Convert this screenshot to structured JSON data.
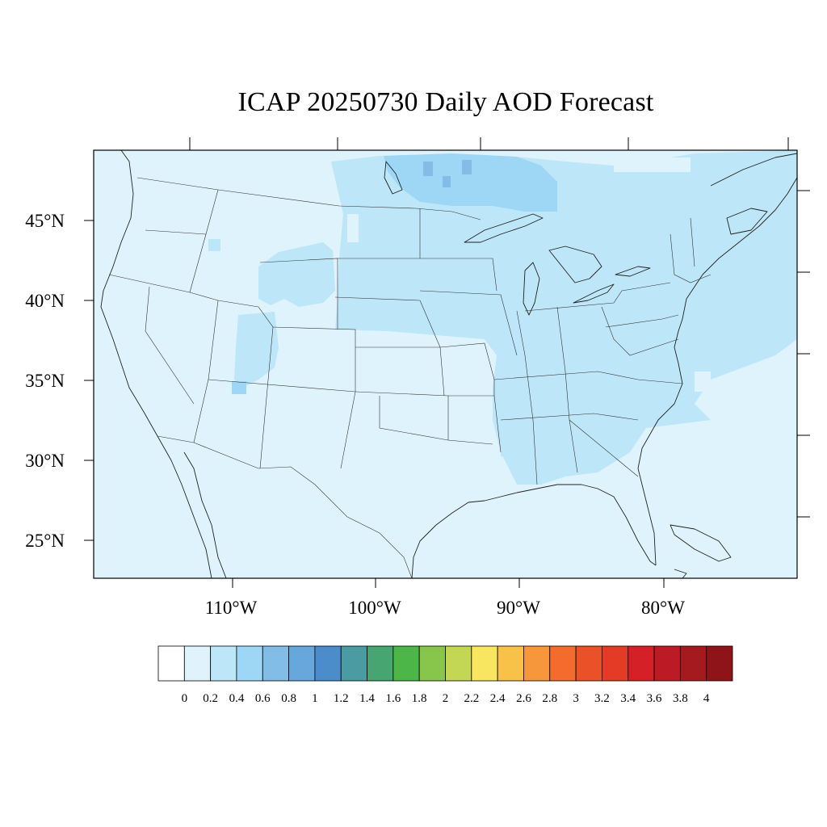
{
  "title": "ICAP 20250730 Daily AOD Forecast",
  "map": {
    "projection": "lambert-conformal",
    "region": "Contiguous United States",
    "background_color": "#dff3fc",
    "lat_labels": [
      "45°N",
      "40°N",
      "35°N",
      "30°N",
      "25°N"
    ],
    "lon_labels": [
      "110°W",
      "100°W",
      "90°W",
      "80°W"
    ]
  },
  "colorbar": {
    "labels": [
      "0",
      "0.2",
      "0.4",
      "0.6",
      "0.8",
      "1",
      "1.2",
      "1.4",
      "1.6",
      "1.8",
      "2",
      "2.2",
      "2.4",
      "2.6",
      "2.8",
      "3",
      "3.2",
      "3.4",
      "3.6",
      "3.8",
      "4"
    ],
    "colors": [
      "#ffffff",
      "#dff3fc",
      "#bde6f8",
      "#9dd7f5",
      "#81bde6",
      "#68a7dc",
      "#4b8ccb",
      "#4a9ba2",
      "#47a572",
      "#4cb748",
      "#87c64b",
      "#c4d755",
      "#f8e660",
      "#f8c249",
      "#f7973c",
      "#f36c2d",
      "#ea5128",
      "#e33b26",
      "#d62028",
      "#bc1a24",
      "#a51a1f",
      "#8f1419"
    ]
  }
}
